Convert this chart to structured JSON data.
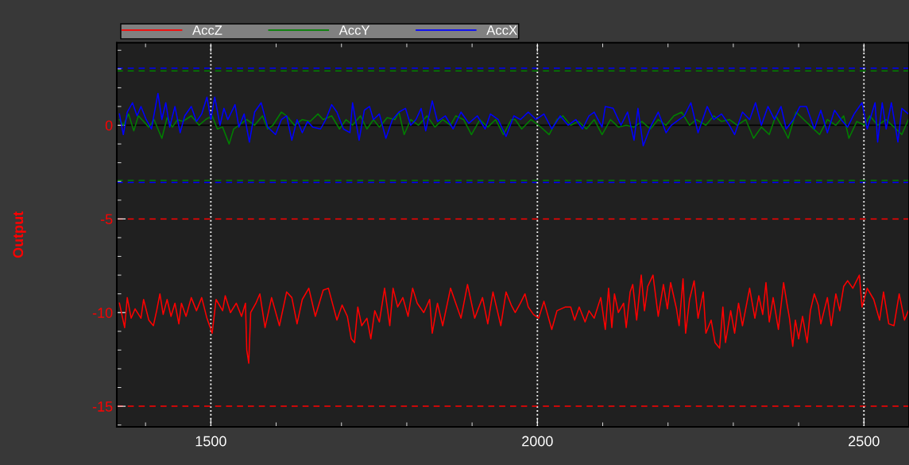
{
  "chart_data": {
    "type": "line",
    "ylabel": "Output",
    "xlim": [
      1356,
      2569
    ],
    "ylim": [
      -16.1,
      4.4
    ],
    "xticks": [
      1500,
      2000,
      2500
    ],
    "yticks": [
      -15,
      -10,
      -5,
      0
    ],
    "grid": "x",
    "legend": "top left",
    "line_style": "solid",
    "marker": "none",
    "ref_lines": [
      {
        "axis": "y",
        "value": 0,
        "color": "#000000",
        "line_style": "solid"
      },
      {
        "axis": "y",
        "value": 3.05,
        "color": "#0000ff",
        "line_style": "dashed"
      },
      {
        "axis": "y",
        "value": 2.9,
        "color": "#008000",
        "line_style": "dashed"
      },
      {
        "axis": "y",
        "value": -2.95,
        "color": "#008000",
        "line_style": "dashed"
      },
      {
        "axis": "y",
        "value": -3.05,
        "color": "#0000ff",
        "line_style": "dashed"
      },
      {
        "axis": "y",
        "value": -5,
        "color": "#ff0000",
        "line_style": "dashed"
      },
      {
        "axis": "y",
        "value": -15,
        "color": "#ff0000",
        "line_style": "dashed"
      }
    ],
    "series": [
      {
        "name": "AccZ",
        "color": "#ff0000",
        "x": [
          1360,
          1368,
          1372,
          1378,
          1384,
          1393,
          1397,
          1405,
          1412,
          1417,
          1422,
          1427,
          1433,
          1439,
          1445,
          1451,
          1455,
          1462,
          1470,
          1478,
          1486,
          1494,
          1502,
          1508,
          1518,
          1522,
          1530,
          1539,
          1547,
          1553,
          1555,
          1558,
          1561,
          1569,
          1575,
          1583,
          1593,
          1605,
          1616,
          1624,
          1632,
          1640,
          1650,
          1660,
          1672,
          1680,
          1693,
          1701,
          1709,
          1715,
          1720,
          1725,
          1731,
          1739,
          1745,
          1751,
          1758,
          1766,
          1774,
          1779,
          1786,
          1794,
          1802,
          1809,
          1816,
          1826,
          1835,
          1839,
          1847,
          1855,
          1867,
          1875,
          1883,
          1893,
          1904,
          1916,
          1924,
          1932,
          1944,
          1952,
          1960,
          1966,
          1974,
          1981,
          1986,
          1994,
          2002,
          2010,
          2022,
          2030,
          2043,
          2051,
          2057,
          2064,
          2073,
          2079,
          2087,
          2097,
          2104,
          2109,
          2114,
          2118,
          2124,
          2132,
          2136,
          2142,
          2146,
          2152,
          2159,
          2164,
          2169,
          2177,
          2185,
          2193,
          2199,
          2204,
          2213,
          2217,
          2223,
          2227,
          2233,
          2240,
          2246,
          2254,
          2258,
          2266,
          2272,
          2279,
          2284,
          2288,
          2296,
          2302,
          2308,
          2314,
          2325,
          2333,
          2339,
          2345,
          2350,
          2355,
          2361,
          2369,
          2377,
          2382,
          2386,
          2391,
          2395,
          2400,
          2406,
          2413,
          2418,
          2424,
          2430,
          2434,
          2444,
          2450,
          2457,
          2463,
          2469,
          2475,
          2483,
          2493,
          2497,
          2505,
          2515,
          2524,
          2530,
          2538,
          2546,
          2554,
          2562,
          2568
        ],
        "values": [
          -9.5,
          -10.8,
          -9.2,
          -10.3,
          -9.8,
          -10.3,
          -9.3,
          -10.4,
          -10.7,
          -9.9,
          -9.0,
          -10.1,
          -9.3,
          -10.2,
          -9.5,
          -10.6,
          -9.5,
          -10.2,
          -9.2,
          -9.9,
          -9.2,
          -10.3,
          -11.1,
          -9.3,
          -9.9,
          -9.1,
          -10.0,
          -9.5,
          -10.2,
          -9.5,
          -12.0,
          -12.7,
          -10.0,
          -9.5,
          -9.0,
          -10.8,
          -9.2,
          -10.7,
          -8.9,
          -9.2,
          -10.6,
          -9.3,
          -8.7,
          -10.2,
          -8.8,
          -8.7,
          -10.4,
          -9.6,
          -10.2,
          -11.4,
          -11.6,
          -9.7,
          -10.7,
          -10.3,
          -11.4,
          -9.9,
          -10.5,
          -8.7,
          -10.7,
          -8.7,
          -9.7,
          -9.2,
          -10.2,
          -8.7,
          -9.5,
          -10.0,
          -9.3,
          -11.1,
          -9.5,
          -10.7,
          -8.7,
          -9.5,
          -10.3,
          -8.5,
          -10.3,
          -9.2,
          -10.6,
          -8.9,
          -10.7,
          -8.9,
          -9.6,
          -10.0,
          -9.5,
          -9.0,
          -9.7,
          -10.1,
          -10.3,
          -9.4,
          -10.9,
          -9.9,
          -9.7,
          -9.7,
          -10.4,
          -9.7,
          -10.5,
          -9.9,
          -10.3,
          -9.2,
          -10.9,
          -8.7,
          -10.8,
          -9.0,
          -10.0,
          -9.5,
          -10.8,
          -8.9,
          -8.5,
          -10.4,
          -8.0,
          -9.9,
          -8.6,
          -8.0,
          -10.2,
          -8.5,
          -9.8,
          -8.4,
          -9.8,
          -10.7,
          -8.2,
          -11.1,
          -9.3,
          -8.3,
          -10.3,
          -8.9,
          -11.1,
          -10.4,
          -11.6,
          -11.9,
          -9.7,
          -11.6,
          -9.9,
          -11.1,
          -9.5,
          -10.7,
          -8.7,
          -10.3,
          -9.1,
          -10.1,
          -8.4,
          -10.5,
          -9.2,
          -10.9,
          -8.4,
          -9.5,
          -10.3,
          -11.8,
          -10.4,
          -11.4,
          -10.2,
          -11.6,
          -9.9,
          -9.0,
          -9.6,
          -10.6,
          -9.2,
          -10.7,
          -9.0,
          -9.9,
          -8.6,
          -8.3,
          -8.7,
          -8.0,
          -9.7,
          -8.7,
          -9.3,
          -10.4,
          -8.9,
          -10.6,
          -10.7,
          -9.0,
          -10.4,
          -9.9
        ]
      },
      {
        "name": "AccY",
        "color": "#008000",
        "x": [
          1360,
          1366,
          1374,
          1382,
          1389,
          1397,
          1405,
          1413,
          1425,
          1433,
          1441,
          1449,
          1457,
          1470,
          1482,
          1492,
          1502,
          1510,
          1518,
          1528,
          1535,
          1543,
          1555,
          1567,
          1579,
          1587,
          1595,
          1608,
          1616,
          1628,
          1640,
          1652,
          1664,
          1672,
          1685,
          1697,
          1707,
          1717,
          1729,
          1739,
          1749,
          1758,
          1770,
          1782,
          1788,
          1796,
          1806,
          1818,
          1831,
          1843,
          1855,
          1867,
          1875,
          1887,
          1899,
          1912,
          1924,
          1936,
          1948,
          1960,
          1966,
          1976,
          1990,
          2002,
          2018,
          2030,
          2039,
          2051,
          2063,
          2075,
          2087,
          2099,
          2112,
          2124,
          2136,
          2148,
          2160,
          2173,
          2185,
          2197,
          2209,
          2221,
          2233,
          2243,
          2258,
          2270,
          2282,
          2294,
          2306,
          2319,
          2331,
          2343,
          2355,
          2365,
          2377,
          2384,
          2396,
          2408,
          2420,
          2432,
          2444,
          2457,
          2469,
          2477,
          2489,
          2501,
          2509,
          2521,
          2534,
          2546,
          2558,
          2568
        ],
        "values": [
          0.3,
          0.0,
          0.6,
          -0.3,
          0.5,
          0.2,
          -0.1,
          0.3,
          -0.7,
          0.4,
          -0.1,
          0.3,
          0.2,
          0.5,
          0.0,
          0.3,
          0.5,
          -0.2,
          -0.1,
          -1.0,
          -0.2,
          0.0,
          0.3,
          0.0,
          0.5,
          -0.2,
          0.0,
          0.7,
          0.5,
          0.0,
          0.3,
          0.2,
          0.6,
          0.3,
          0.5,
          -0.2,
          0.3,
          0.0,
          0.5,
          -0.2,
          0.3,
          -0.1,
          0.4,
          0.3,
          0.7,
          -0.5,
          0.3,
          0.0,
          0.5,
          -0.1,
          0.3,
          0.0,
          0.5,
          0.3,
          -0.5,
          0.3,
          -0.1,
          0.3,
          -0.5,
          0.3,
          0.3,
          -0.2,
          0.3,
          0.0,
          -0.5,
          0.3,
          0.5,
          0.0,
          0.2,
          -0.2,
          0.3,
          -0.5,
          0.3,
          -0.1,
          0.0,
          -0.1,
          0.2,
          -0.2,
          0.3,
          0.0,
          0.5,
          0.7,
          0.0,
          0.3,
          0.0,
          0.5,
          0.2,
          0.3,
          0.0,
          0.3,
          -0.7,
          -0.1,
          -0.5,
          0.5,
          -0.2,
          -0.7,
          0.7,
          0.3,
          -0.1,
          -0.5,
          0.3,
          0.0,
          0.5,
          -0.7,
          0.2,
          0.0,
          0.5,
          0.0,
          0.3,
          -0.1,
          -0.5,
          0.3
        ]
      },
      {
        "name": "AccX",
        "color": "#0000ff",
        "x": [
          1360,
          1366,
          1372,
          1380,
          1387,
          1393,
          1401,
          1409,
          1419,
          1425,
          1431,
          1437,
          1445,
          1453,
          1460,
          1470,
          1478,
          1486,
          1494,
          1500,
          1506,
          1514,
          1520,
          1526,
          1537,
          1543,
          1551,
          1559,
          1567,
          1577,
          1587,
          1599,
          1608,
          1616,
          1624,
          1632,
          1640,
          1648,
          1656,
          1668,
          1676,
          1685,
          1693,
          1703,
          1713,
          1717,
          1727,
          1735,
          1743,
          1749,
          1758,
          1768,
          1778,
          1788,
          1798,
          1806,
          1814,
          1822,
          1829,
          1839,
          1847,
          1859,
          1871,
          1883,
          1895,
          1908,
          1920,
          1928,
          1940,
          1952,
          1964,
          1974,
          1986,
          1998,
          2010,
          2022,
          2035,
          2047,
          2059,
          2069,
          2079,
          2087,
          2099,
          2104,
          2116,
          2128,
          2138,
          2148,
          2154,
          2162,
          2173,
          2185,
          2197,
          2205,
          2217,
          2225,
          2235,
          2246,
          2260,
          2270,
          2282,
          2294,
          2302,
          2314,
          2325,
          2334,
          2343,
          2353,
          2363,
          2373,
          2381,
          2392,
          2402,
          2412,
          2424,
          2434,
          2444,
          2455,
          2465,
          2475,
          2485,
          2497,
          2505,
          2517,
          2521,
          2528,
          2534,
          2542,
          2552,
          2558,
          2568
        ],
        "values": [
          0.6,
          -0.5,
          0.7,
          1.2,
          0.5,
          1.0,
          0.3,
          -0.2,
          1.7,
          0.3,
          1.2,
          -0.1,
          1.0,
          -0.4,
          0.5,
          1.0,
          0.2,
          0.6,
          1.5,
          0.3,
          1.5,
          0.0,
          0.9,
          0.3,
          1.1,
          -0.1,
          0.6,
          -0.9,
          0.7,
          1.2,
          -0.1,
          -0.5,
          0.3,
          0.5,
          -0.8,
          0.3,
          -0.4,
          0.2,
          -0.1,
          -0.2,
          0.3,
          1.1,
          0.7,
          -0.2,
          -0.4,
          1.2,
          -0.8,
          0.8,
          1.0,
          0.3,
          0.6,
          -0.7,
          0.3,
          0.7,
          0.9,
          0.0,
          0.3,
          0.9,
          -0.3,
          1.3,
          0.2,
          0.5,
          -0.2,
          0.7,
          0.1,
          0.5,
          -0.2,
          0.6,
          0.3,
          -0.6,
          0.5,
          0.3,
          0.7,
          0.3,
          0.6,
          -0.2,
          0.5,
          0.0,
          0.3,
          -0.2,
          0.5,
          0.7,
          -0.1,
          1.0,
          0.9,
          0.0,
          0.7,
          -0.8,
          0.9,
          -1.1,
          -0.1,
          0.7,
          -0.4,
          0.0,
          0.3,
          0.5,
          1.2,
          -0.4,
          1.0,
          0.3,
          0.6,
          0.0,
          -0.5,
          0.7,
          0.3,
          1.2,
          0.0,
          1.0,
          0.3,
          1.0,
          -0.2,
          0.3,
          1.0,
          1.0,
          -0.2,
          0.8,
          -0.4,
          0.8,
          0.3,
          -0.1,
          0.6,
          1.2,
          -0.2,
          1.2,
          -0.9,
          1.2,
          -0.2,
          1.2,
          -0.9,
          0.9,
          0.6
        ]
      }
    ]
  }
}
